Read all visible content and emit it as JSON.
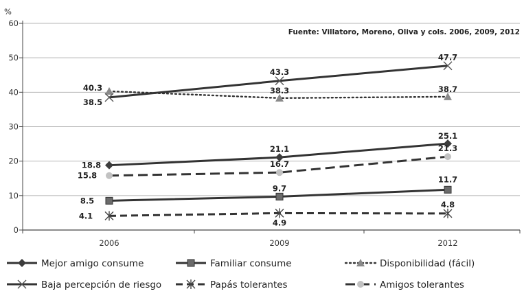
{
  "chart_data": {
    "type": "line",
    "unit_label": "%",
    "source": "Fuente: Villatoro, Moreno, Oliva y cols. 2006, 2009, 2012",
    "x": [
      "2006",
      "2009",
      "2012"
    ],
    "ylim": [
      0,
      60
    ],
    "yticks": [
      0,
      10,
      20,
      30,
      40,
      50,
      60
    ],
    "grid": true,
    "legend_placement": "bottom",
    "series": [
      {
        "name": "Mejor amigo consume",
        "values": [
          18.8,
          21.1,
          25.1
        ],
        "labels": [
          "18.8",
          "21.1",
          "25.1"
        ],
        "color": "#333333",
        "marker": "diamond",
        "line": "solid"
      },
      {
        "name": "Familiar consume",
        "values": [
          8.5,
          9.7,
          11.7
        ],
        "labels": [
          "8.5",
          "9.7",
          "11.7"
        ],
        "color": "#333333",
        "marker": "square",
        "line": "solid"
      },
      {
        "name": "Disponibilidad (fácil)",
        "values": [
          40.3,
          38.3,
          38.7
        ],
        "labels": [
          "40.3",
          "38.3",
          "38.7"
        ],
        "color": "#333333",
        "marker": "triangle",
        "line": "dotted"
      },
      {
        "name": "Baja percepción de riesgo",
        "values": [
          38.5,
          43.3,
          47.7
        ],
        "labels": [
          "38.5",
          "43.3",
          "47.7"
        ],
        "color": "#333333",
        "marker": "x",
        "line": "solid"
      },
      {
        "name": "Papás tolerantes",
        "values": [
          4.1,
          4.9,
          4.8
        ],
        "labels": [
          "4.1",
          "4.9",
          "4.8"
        ],
        "color": "#333333",
        "marker": "star",
        "line": "dashed"
      },
      {
        "name": "Amigos tolerantes",
        "values": [
          15.8,
          16.7,
          21.3
        ],
        "labels": [
          "15.8",
          "16.7",
          "21.3"
        ],
        "color": "#333333",
        "marker": "circle",
        "line": "longdash"
      }
    ]
  }
}
